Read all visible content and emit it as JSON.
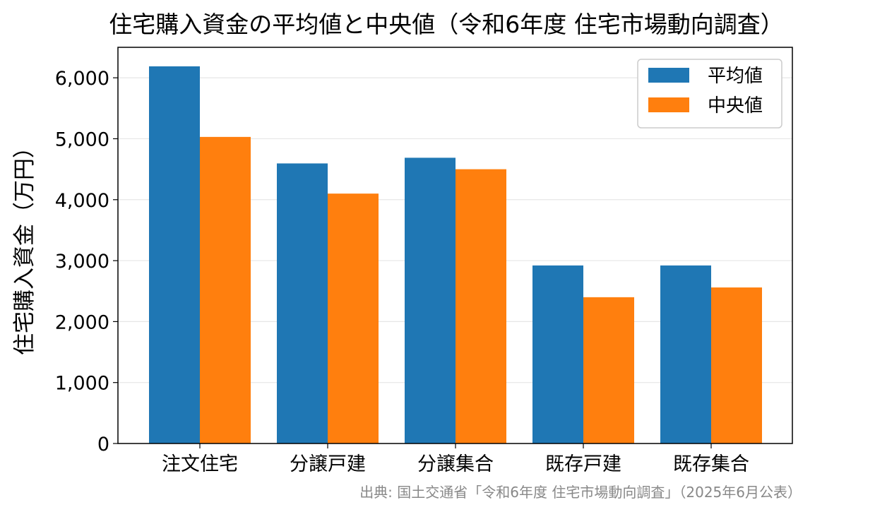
{
  "chart_data": {
    "type": "bar",
    "title": "住宅購入資金の平均値と中央値（令和6年度 住宅市場動向調査）",
    "xlabel": "",
    "ylabel": "住宅購入資金（万円）",
    "categories": [
      "注文住宅",
      "分譲戸建",
      "分譲集合",
      "既存戸建",
      "既存集合"
    ],
    "series": [
      {
        "name": "平均値",
        "color": "#1f77b4",
        "values": [
          6188,
          4595,
          4688,
          2921,
          2921
        ]
      },
      {
        "name": "中央値",
        "color": "#ff7f0e",
        "values": [
          5030,
          4100,
          4500,
          2400,
          2560
        ]
      }
    ],
    "ylim": [
      0,
      6500
    ],
    "yticks": [
      0,
      1000,
      2000,
      3000,
      4000,
      5000,
      6000
    ],
    "ytick_labels": [
      "0",
      "1,000",
      "2,000",
      "3,000",
      "4,000",
      "5,000",
      "6,000"
    ],
    "grid": "horizontal",
    "legend_position": "top-right",
    "source": "出典: 国土交通省「令和6年度 住宅市場動向調査」（2025年6月公表）"
  }
}
